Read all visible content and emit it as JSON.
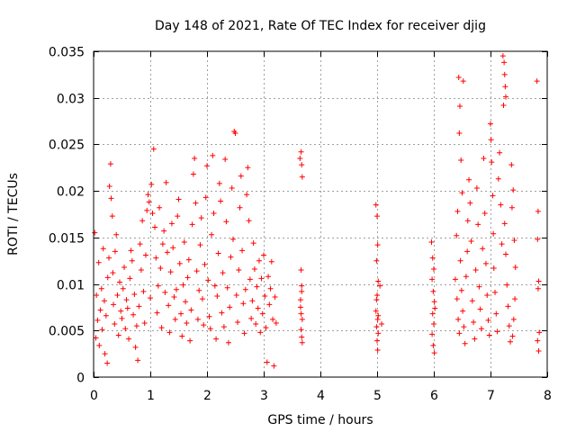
{
  "chart_data": {
    "type": "scatter",
    "title": "Day 148 of 2021, Rate Of TEC Index for receiver djig",
    "xlabel": "GPS time / hours",
    "ylabel": "ROTI / TECUs",
    "xlim": [
      0,
      8
    ],
    "ylim": [
      0,
      0.035
    ],
    "xticks": [
      0,
      1,
      2,
      3,
      4,
      5,
      6,
      7,
      8
    ],
    "xtick_labels": [
      "0",
      "1",
      "2",
      "3",
      "4",
      "5",
      "6",
      "7",
      "8"
    ],
    "yticks": [
      0,
      0.005,
      0.01,
      0.015,
      0.02,
      0.025,
      0.03,
      0.035
    ],
    "ytick_labels": [
      "0",
      "0.005",
      "0.01",
      "0.015",
      "0.02",
      "0.025",
      "0.03",
      "0.035"
    ],
    "grid": true,
    "marker": "+",
    "color": "#ff0000",
    "series": [
      {
        "name": "ROTI",
        "points": [
          [
            0.02,
            0.0155
          ],
          [
            0.04,
            0.0042
          ],
          [
            0.05,
            0.0088
          ],
          [
            0.07,
            0.0061
          ],
          [
            0.09,
            0.0123
          ],
          [
            0.1,
            0.0034
          ],
          [
            0.12,
            0.0072
          ],
          [
            0.14,
            0.0095
          ],
          [
            0.15,
            0.0051
          ],
          [
            0.17,
            0.0138
          ],
          [
            0.19,
            0.0082
          ],
          [
            0.2,
            0.0025
          ],
          [
            0.22,
            0.0066
          ],
          [
            0.24,
            0.0015
          ],
          [
            0.25,
            0.0107
          ],
          [
            0.27,
            0.0128
          ],
          [
            0.28,
            0.0205
          ],
          [
            0.3,
            0.0229
          ],
          [
            0.31,
            0.0192
          ],
          [
            0.33,
            0.0173
          ],
          [
            0.34,
            0.0112
          ],
          [
            0.35,
            0.0078
          ],
          [
            0.37,
            0.0057
          ],
          [
            0.38,
            0.0135
          ],
          [
            0.4,
            0.0153
          ],
          [
            0.42,
            0.0088
          ],
          [
            0.44,
            0.0045
          ],
          [
            0.46,
            0.0102
          ],
          [
            0.48,
            0.0071
          ],
          [
            0.5,
            0.0063
          ],
          [
            0.52,
            0.0095
          ],
          [
            0.54,
            0.0118
          ],
          [
            0.56,
            0.0052
          ],
          [
            0.58,
            0.0083
          ],
          [
            0.6,
            0.0074
          ],
          [
            0.62,
            0.0041
          ],
          [
            0.64,
            0.0106
          ],
          [
            0.66,
            0.0136
          ],
          [
            0.68,
            0.0125
          ],
          [
            0.7,
            0.0067
          ],
          [
            0.72,
            0.0089
          ],
          [
            0.74,
            0.0032
          ],
          [
            0.76,
            0.0055
          ],
          [
            0.78,
            0.0018
          ],
          [
            0.8,
            0.0076
          ],
          [
            0.82,
            0.0143
          ],
          [
            0.84,
            0.0115
          ],
          [
            0.86,
            0.0168
          ],
          [
            0.88,
            0.0092
          ],
          [
            0.9,
            0.0058
          ],
          [
            0.92,
            0.0131
          ],
          [
            0.94,
            0.0179
          ],
          [
            0.96,
            0.0196
          ],
          [
            0.98,
            0.0188
          ],
          [
            1.0,
            0.0085
          ],
          [
            1.02,
            0.0207
          ],
          [
            1.04,
            0.0176
          ],
          [
            1.06,
            0.0245
          ],
          [
            1.08,
            0.0161
          ],
          [
            1.1,
            0.0128
          ],
          [
            1.12,
            0.0069
          ],
          [
            1.14,
            0.0098
          ],
          [
            1.16,
            0.0182
          ],
          [
            1.18,
            0.0117
          ],
          [
            1.2,
            0.0053
          ],
          [
            1.22,
            0.0143
          ],
          [
            1.24,
            0.0157
          ],
          [
            1.26,
            0.0091
          ],
          [
            1.28,
            0.0209
          ],
          [
            1.3,
            0.0134
          ],
          [
            1.32,
            0.0077
          ],
          [
            1.34,
            0.0048
          ],
          [
            1.36,
            0.0113
          ],
          [
            1.38,
            0.0165
          ],
          [
            1.4,
            0.0139
          ],
          [
            1.42,
            0.0086
          ],
          [
            1.44,
            0.0062
          ],
          [
            1.46,
            0.0094
          ],
          [
            1.48,
            0.0173
          ],
          [
            1.5,
            0.0191
          ],
          [
            1.52,
            0.0122
          ],
          [
            1.54,
            0.0068
          ],
          [
            1.56,
            0.0044
          ],
          [
            1.58,
            0.0099
          ],
          [
            1.6,
            0.0145
          ],
          [
            1.62,
            0.0081
          ],
          [
            1.64,
            0.0058
          ],
          [
            1.66,
            0.0107
          ],
          [
            1.68,
            0.0126
          ],
          [
            1.7,
            0.0039
          ],
          [
            1.72,
            0.0072
          ],
          [
            1.74,
            0.0164
          ],
          [
            1.76,
            0.0218
          ],
          [
            1.78,
            0.0235
          ],
          [
            1.8,
            0.0187
          ],
          [
            1.82,
            0.0114
          ],
          [
            1.84,
            0.0062
          ],
          [
            1.86,
            0.0093
          ],
          [
            1.88,
            0.0142
          ],
          [
            1.9,
            0.0171
          ],
          [
            1.92,
            0.0084
          ],
          [
            1.94,
            0.0056
          ],
          [
            1.96,
            0.0121
          ],
          [
            1.98,
            0.0193
          ],
          [
            2.0,
            0.0227
          ],
          [
            2.02,
            0.0104
          ],
          [
            2.04,
            0.0065
          ],
          [
            2.06,
            0.0052
          ],
          [
            2.08,
            0.0153
          ],
          [
            2.1,
            0.0238
          ],
          [
            2.12,
            0.0176
          ],
          [
            2.14,
            0.0098
          ],
          [
            2.16,
            0.0041
          ],
          [
            2.18,
            0.0087
          ],
          [
            2.2,
            0.0133
          ],
          [
            2.22,
            0.0208
          ],
          [
            2.24,
            0.0189
          ],
          [
            2.26,
            0.0069
          ],
          [
            2.28,
            0.0112
          ],
          [
            2.3,
            0.0054
          ],
          [
            2.32,
            0.0234
          ],
          [
            2.34,
            0.0167
          ],
          [
            2.36,
            0.0096
          ],
          [
            2.38,
            0.0037
          ],
          [
            2.4,
            0.0075
          ],
          [
            2.42,
            0.0129
          ],
          [
            2.44,
            0.0203
          ],
          [
            2.46,
            0.0148
          ],
          [
            2.48,
            0.0264
          ],
          [
            2.5,
            0.0262
          ],
          [
            2.52,
            0.0088
          ],
          [
            2.54,
            0.0059
          ],
          [
            2.56,
            0.0115
          ],
          [
            2.58,
            0.0182
          ],
          [
            2.6,
            0.0216
          ],
          [
            2.62,
            0.0136
          ],
          [
            2.64,
            0.0079
          ],
          [
            2.66,
            0.0047
          ],
          [
            2.68,
            0.0094
          ],
          [
            2.7,
            0.0196
          ],
          [
            2.72,
            0.0225
          ],
          [
            2.74,
            0.0168
          ],
          [
            2.76,
            0.0105
          ],
          [
            2.78,
            0.0063
          ],
          [
            2.8,
            0.0082
          ],
          [
            2.82,
            0.0144
          ],
          [
            2.84,
            0.0116
          ],
          [
            2.86,
            0.0057
          ],
          [
            2.88,
            0.0097
          ],
          [
            2.9,
            0.0074
          ],
          [
            2.92,
            0.0125
          ],
          [
            2.94,
            0.0048
          ],
          [
            2.96,
            0.0106
          ],
          [
            2.98,
            0.0068
          ],
          [
            3.0,
            0.0131
          ],
          [
            3.02,
            0.0087
          ],
          [
            3.04,
            0.0053
          ],
          [
            3.06,
            0.0016
          ],
          [
            3.08,
            0.0108
          ],
          [
            3.1,
            0.0078
          ],
          [
            3.12,
            0.0095
          ],
          [
            3.14,
            0.0124
          ],
          [
            3.16,
            0.0062
          ],
          [
            3.18,
            0.0012
          ],
          [
            3.2,
            0.0086
          ],
          [
            3.22,
            0.0058
          ],
          [
            3.64,
            0.0235
          ],
          [
            3.66,
            0.0242
          ],
          [
            3.67,
            0.0228
          ],
          [
            3.68,
            0.0215
          ],
          [
            3.66,
            0.0115
          ],
          [
            3.67,
            0.0098
          ],
          [
            3.65,
            0.0075
          ],
          [
            3.68,
            0.0062
          ],
          [
            3.66,
            0.0051
          ],
          [
            3.67,
            0.0043
          ],
          [
            3.65,
            0.0083
          ],
          [
            3.68,
            0.0037
          ],
          [
            3.66,
            0.0068
          ],
          [
            3.67,
            0.0092
          ],
          [
            4.98,
            0.0185
          ],
          [
            5.0,
            0.0173
          ],
          [
            5.01,
            0.0142
          ],
          [
            4.99,
            0.0125
          ],
          [
            5.02,
            0.0103
          ],
          [
            5.0,
            0.0088
          ],
          [
            4.98,
            0.0071
          ],
          [
            5.01,
            0.0062
          ],
          [
            4.99,
            0.0054
          ],
          [
            5.02,
            0.0047
          ],
          [
            5.0,
            0.0039
          ],
          [
            5.01,
            0.0029
          ],
          [
            4.99,
            0.0083
          ],
          [
            5.02,
            0.0066
          ],
          [
            5.05,
            0.0098
          ],
          [
            5.08,
            0.0057
          ],
          [
            5.96,
            0.0145
          ],
          [
            5.98,
            0.0128
          ],
          [
            6.0,
            0.0116
          ],
          [
            5.97,
            0.0105
          ],
          [
            5.99,
            0.0092
          ],
          [
            6.01,
            0.0081
          ],
          [
            5.98,
            0.0068
          ],
          [
            6.0,
            0.0057
          ],
          [
            5.97,
            0.0046
          ],
          [
            5.99,
            0.0034
          ],
          [
            6.01,
            0.0026
          ],
          [
            6.02,
            0.0074
          ],
          [
            6.38,
            0.0105
          ],
          [
            6.4,
            0.0152
          ],
          [
            6.42,
            0.0178
          ],
          [
            6.44,
            0.0322
          ],
          [
            6.45,
            0.0262
          ],
          [
            6.46,
            0.0291
          ],
          [
            6.48,
            0.0233
          ],
          [
            6.5,
            0.0198
          ],
          [
            6.52,
            0.0318
          ],
          [
            6.41,
            0.0084
          ],
          [
            6.43,
            0.0062
          ],
          [
            6.45,
            0.0047
          ],
          [
            6.47,
            0.0125
          ],
          [
            6.49,
            0.0093
          ],
          [
            6.51,
            0.0071
          ],
          [
            6.53,
            0.0054
          ],
          [
            6.55,
            0.0036
          ],
          [
            6.57,
            0.0108
          ],
          [
            6.59,
            0.0135
          ],
          [
            6.6,
            0.0168
          ],
          [
            6.62,
            0.0212
          ],
          [
            6.64,
            0.0187
          ],
          [
            6.66,
            0.0146
          ],
          [
            6.68,
            0.0082
          ],
          [
            6.7,
            0.0059
          ],
          [
            6.72,
            0.0041
          ],
          [
            6.74,
            0.0115
          ],
          [
            6.76,
            0.0203
          ],
          [
            6.78,
            0.0164
          ],
          [
            6.8,
            0.0097
          ],
          [
            6.82,
            0.0073
          ],
          [
            6.84,
            0.0052
          ],
          [
            6.86,
            0.0138
          ],
          [
            6.88,
            0.0235
          ],
          [
            6.9,
            0.0176
          ],
          [
            6.92,
            0.0122
          ],
          [
            6.94,
            0.0088
          ],
          [
            6.96,
            0.0061
          ],
          [
            6.98,
            0.0045
          ],
          [
            7.0,
            0.0272
          ],
          [
            7.01,
            0.0255
          ],
          [
            7.02,
            0.0231
          ],
          [
            7.04,
            0.0195
          ],
          [
            7.05,
            0.0154
          ],
          [
            7.06,
            0.0117
          ],
          [
            7.08,
            0.0091
          ],
          [
            7.1,
            0.0068
          ],
          [
            7.12,
            0.0049
          ],
          [
            7.14,
            0.0213
          ],
          [
            7.16,
            0.0241
          ],
          [
            7.18,
            0.0185
          ],
          [
            7.2,
            0.0143
          ],
          [
            7.22,
            0.0345
          ],
          [
            7.24,
            0.0338
          ],
          [
            7.25,
            0.0325
          ],
          [
            7.26,
            0.0312
          ],
          [
            7.27,
            0.0301
          ],
          [
            7.23,
            0.0292
          ],
          [
            7.25,
            0.0165
          ],
          [
            7.27,
            0.0132
          ],
          [
            7.29,
            0.0099
          ],
          [
            7.31,
            0.0076
          ],
          [
            7.33,
            0.0055
          ],
          [
            7.35,
            0.0038
          ],
          [
            7.37,
            0.0228
          ],
          [
            7.38,
            0.0182
          ],
          [
            7.4,
            0.0201
          ],
          [
            7.42,
            0.0147
          ],
          [
            7.44,
            0.0118
          ],
          [
            7.43,
            0.0084
          ],
          [
            7.41,
            0.0062
          ],
          [
            7.39,
            0.0044
          ],
          [
            7.82,
            0.0318
          ],
          [
            7.84,
            0.0178
          ],
          [
            7.83,
            0.0148
          ],
          [
            7.85,
            0.0103
          ],
          [
            7.84,
            0.0095
          ],
          [
            7.86,
            0.0048
          ],
          [
            7.83,
            0.0039
          ],
          [
            7.85,
            0.0028
          ]
        ]
      }
    ]
  }
}
